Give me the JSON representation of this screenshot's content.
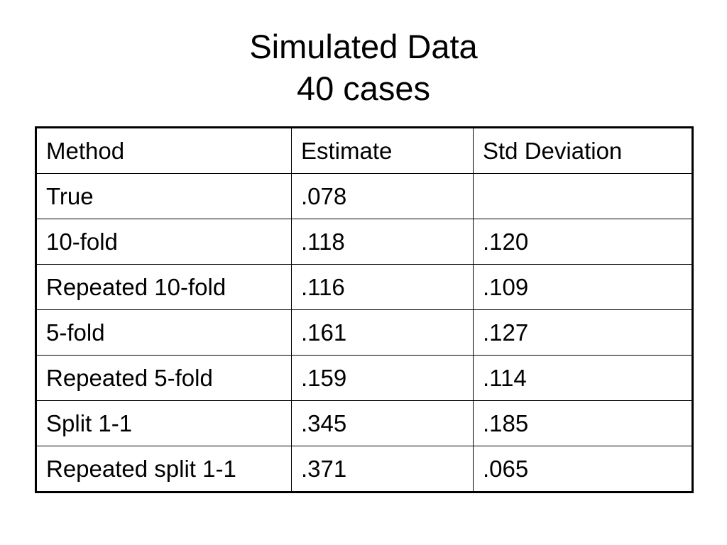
{
  "slide": {
    "title_line1": "Simulated Data",
    "title_line2": "40 cases"
  },
  "table": {
    "headers": [
      "Method",
      "Estimate",
      "Std Deviation"
    ],
    "rows": [
      [
        "True",
        ".078",
        ""
      ],
      [
        "10-fold",
        ".118",
        ".120"
      ],
      [
        "Repeated 10-fold",
        ".116",
        ".109"
      ],
      [
        "5-fold",
        ".161",
        ".127"
      ],
      [
        "Repeated 5-fold",
        ".159",
        ".114"
      ],
      [
        "Split 1-1",
        ".345",
        ".185"
      ],
      [
        "Repeated split 1-1",
        ".371",
        ".065"
      ]
    ]
  }
}
